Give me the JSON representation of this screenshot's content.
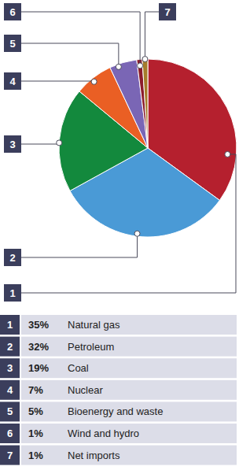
{
  "chart_data": {
    "type": "pie",
    "categories": [
      "Natural gas",
      "Petroleum",
      "Coal",
      "Nuclear",
      "Bioenergy and waste",
      "Wind and hydro",
      "Net imports"
    ],
    "values": [
      35,
      32,
      19,
      7,
      5,
      1,
      1
    ],
    "value_labels": [
      "35%",
      "32%",
      "19%",
      "7%",
      "5%",
      "1%",
      "1%"
    ],
    "numbers": [
      1,
      2,
      3,
      4,
      5,
      6,
      7
    ],
    "colors": [
      "#b5202e",
      "#4a9ad6",
      "#13893d",
      "#ea5f24",
      "#7a66b5",
      "#8c1c2c",
      "#a57c2b"
    ],
    "legend": "bottom"
  }
}
